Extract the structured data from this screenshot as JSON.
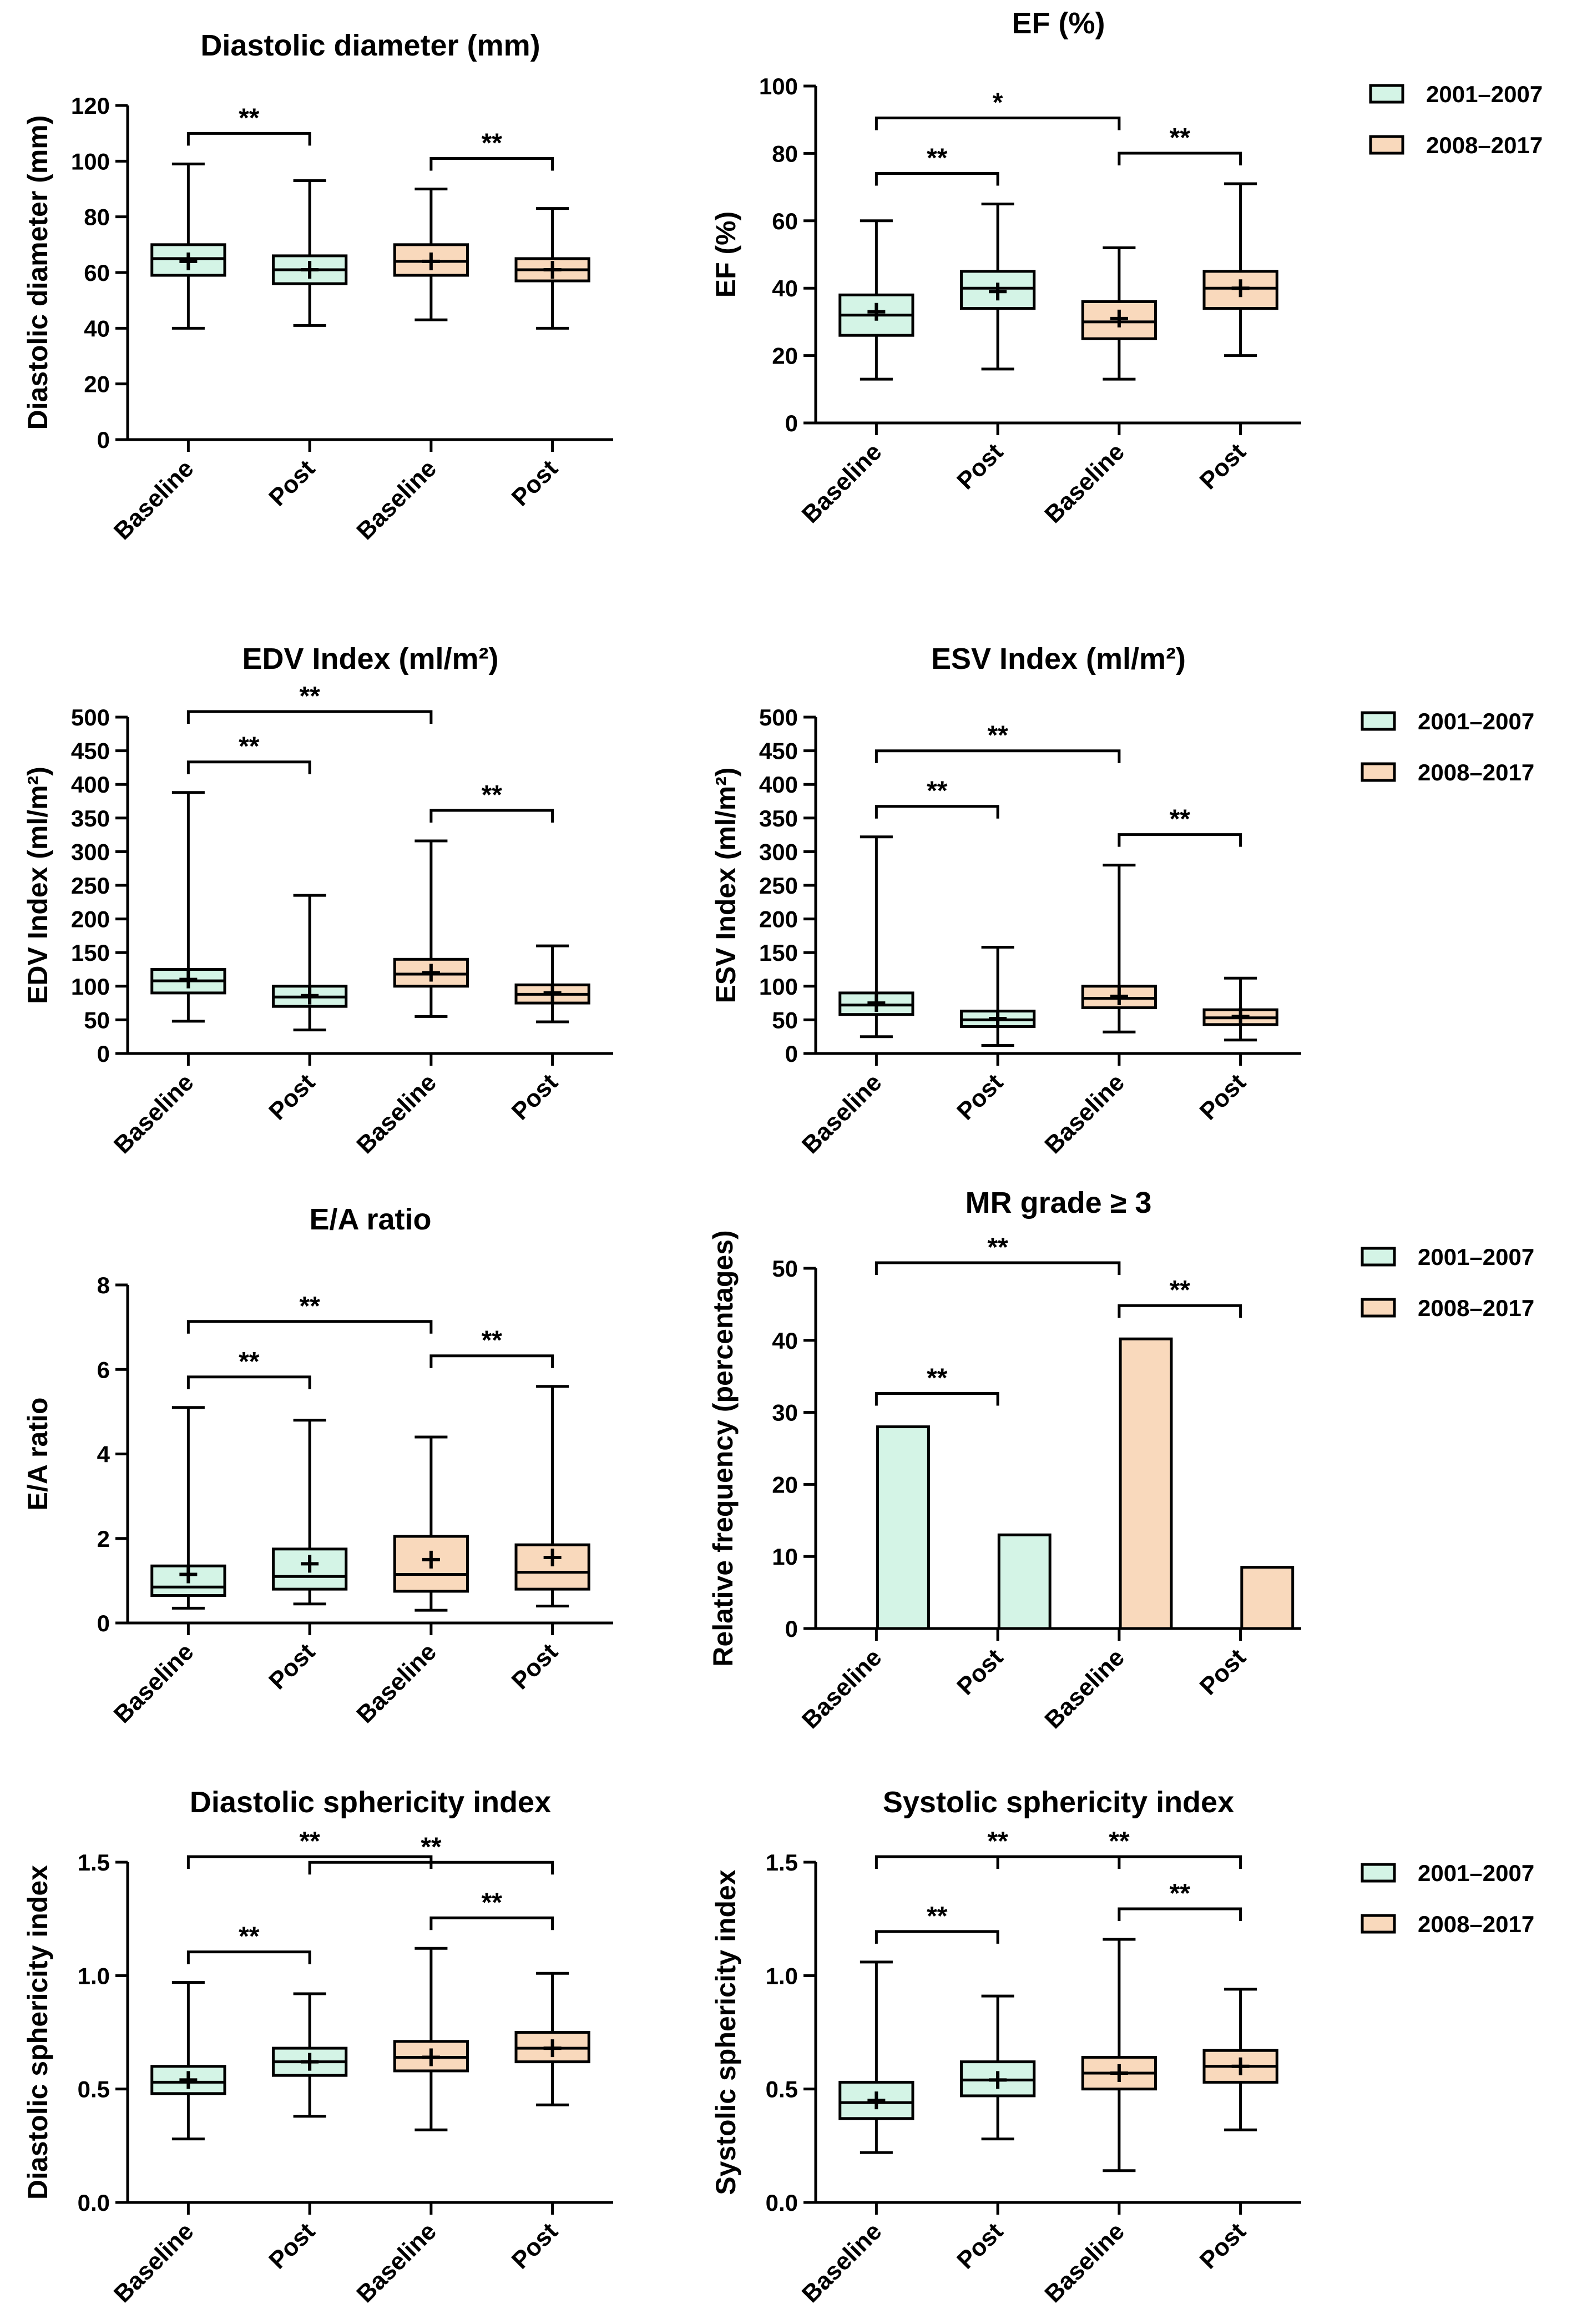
{
  "colors": {
    "group1": "#d4f4e6",
    "group2": "#f9d9bc",
    "stroke": "#000000"
  },
  "legend": {
    "group1": "2001–2007",
    "group2": "2008–2017"
  },
  "chart_data": [
    {
      "type": "box",
      "id": "diastolic-diameter",
      "title": "Diastolic diameter (mm)",
      "ylabel": "Diastolic diameter (mm)",
      "ylim": [
        0,
        120
      ],
      "yticks": [
        0,
        20,
        40,
        60,
        80,
        100,
        120
      ],
      "ytick_labels": [
        "0",
        "20",
        "40",
        "60",
        "80",
        "100",
        "120"
      ],
      "categories": [
        "Baseline",
        "Post",
        "Baseline",
        "Post"
      ],
      "groups": [
        "2001–2007",
        "2001–2007",
        "2008–2017",
        "2008–2017"
      ],
      "boxes": [
        {
          "min": 40,
          "q1": 59,
          "median": 65,
          "q3": 70,
          "max": 99,
          "mean": 64
        },
        {
          "min": 41,
          "q1": 56,
          "median": 61,
          "q3": 66,
          "max": 93,
          "mean": 61
        },
        {
          "min": 43,
          "q1": 59,
          "median": 64,
          "q3": 70,
          "max": 90,
          "mean": 64
        },
        {
          "min": 40,
          "q1": 57,
          "median": 61,
          "q3": 65,
          "max": 83,
          "mean": 61
        }
      ],
      "significance": [
        {
          "from": 0,
          "to": 1,
          "level": 0,
          "label": "**"
        },
        {
          "from": 2,
          "to": 3,
          "level": 0,
          "label": "**"
        }
      ]
    },
    {
      "type": "box",
      "id": "ef",
      "title": "EF (%)",
      "ylabel": "EF (%)",
      "ylim": [
        0,
        100
      ],
      "yticks": [
        0,
        20,
        40,
        60,
        80,
        100
      ],
      "ytick_labels": [
        "0",
        "20",
        "40",
        "60",
        "80",
        "100"
      ],
      "categories": [
        "Baseline",
        "Post",
        "Baseline",
        "Post"
      ],
      "groups": [
        "2001–2007",
        "2001–2007",
        "2008–2017",
        "2008–2017"
      ],
      "boxes": [
        {
          "min": 13,
          "q1": 26,
          "median": 32,
          "q3": 38,
          "max": 60,
          "mean": 33
        },
        {
          "min": 16,
          "q1": 34,
          "median": 40,
          "q3": 45,
          "max": 65,
          "mean": 39
        },
        {
          "min": 13,
          "q1": 25,
          "median": 30,
          "q3": 36,
          "max": 52,
          "mean": 31
        },
        {
          "min": 20,
          "q1": 34,
          "median": 40,
          "q3": 45,
          "max": 71,
          "mean": 40
        }
      ],
      "significance": [
        {
          "from": 0,
          "to": 1,
          "level": 0,
          "label": "**"
        },
        {
          "from": 2,
          "to": 3,
          "level": 0,
          "label": "**"
        },
        {
          "from": 0,
          "to": 2,
          "level": 1,
          "label": "*"
        }
      ]
    },
    {
      "type": "box",
      "id": "edv-index",
      "title": "EDV Index (ml/m²)",
      "ylabel": "EDV Index (ml/m²)",
      "ylim": [
        0,
        500
      ],
      "yticks": [
        0,
        50,
        100,
        150,
        200,
        250,
        300,
        350,
        400,
        450,
        500
      ],
      "ytick_labels": [
        "0",
        "50",
        "100",
        "150",
        "200",
        "250",
        "300",
        "350",
        "400",
        "450",
        "500"
      ],
      "categories": [
        "Baseline",
        "Post",
        "Baseline",
        "Post"
      ],
      "groups": [
        "2001–2007",
        "2001–2007",
        "2008–2017",
        "2008–2017"
      ],
      "boxes": [
        {
          "min": 48,
          "q1": 90,
          "median": 108,
          "q3": 125,
          "max": 388,
          "mean": 110
        },
        {
          "min": 35,
          "q1": 70,
          "median": 84,
          "q3": 100,
          "max": 235,
          "mean": 86
        },
        {
          "min": 55,
          "q1": 100,
          "median": 118,
          "q3": 140,
          "max": 316,
          "mean": 120
        },
        {
          "min": 47,
          "q1": 75,
          "median": 88,
          "q3": 102,
          "max": 160,
          "mean": 90
        }
      ],
      "significance": [
        {
          "from": 0,
          "to": 1,
          "level": 0,
          "label": "**"
        },
        {
          "from": 2,
          "to": 3,
          "level": 0,
          "label": "**"
        },
        {
          "from": 0,
          "to": 2,
          "level": 1,
          "label": "**"
        }
      ]
    },
    {
      "type": "box",
      "id": "esv-index",
      "title": "ESV Index (ml/m²)",
      "ylabel": "ESV Index (ml/m²)",
      "ylim": [
        0,
        500
      ],
      "yticks": [
        0,
        50,
        100,
        150,
        200,
        250,
        300,
        350,
        400,
        450,
        500
      ],
      "ytick_labels": [
        "0",
        "50",
        "100",
        "150",
        "200",
        "250",
        "300",
        "350",
        "400",
        "450",
        "500"
      ],
      "categories": [
        "Baseline",
        "Post",
        "Baseline",
        "Post"
      ],
      "groups": [
        "2001–2007",
        "2001–2007",
        "2008–2017",
        "2008–2017"
      ],
      "boxes": [
        {
          "min": 25,
          "q1": 58,
          "median": 72,
          "q3": 90,
          "max": 322,
          "mean": 75
        },
        {
          "min": 12,
          "q1": 40,
          "median": 50,
          "q3": 63,
          "max": 158,
          "mean": 52
        },
        {
          "min": 32,
          "q1": 68,
          "median": 82,
          "q3": 100,
          "max": 280,
          "mean": 85
        },
        {
          "min": 20,
          "q1": 43,
          "median": 53,
          "q3": 65,
          "max": 112,
          "mean": 55
        }
      ],
      "significance": [
        {
          "from": 0,
          "to": 1,
          "level": 0,
          "label": "**"
        },
        {
          "from": 2,
          "to": 3,
          "level": 0,
          "label": "**"
        },
        {
          "from": 0,
          "to": 2,
          "level": 1,
          "label": "**"
        }
      ]
    },
    {
      "type": "box",
      "id": "ea-ratio",
      "title": "E/A ratio",
      "ylabel": "E/A ratio",
      "ylim": [
        0,
        8
      ],
      "yticks": [
        0,
        2,
        4,
        6,
        8
      ],
      "ytick_labels": [
        "0",
        "2",
        "4",
        "6",
        "8"
      ],
      "categories": [
        "Baseline",
        "Post",
        "Baseline",
        "Post"
      ],
      "groups": [
        "2001–2007",
        "2001–2007",
        "2008–2017",
        "2008–2017"
      ],
      "boxes": [
        {
          "min": 0.35,
          "q1": 0.65,
          "median": 0.85,
          "q3": 1.35,
          "max": 5.1,
          "mean": 1.15
        },
        {
          "min": 0.45,
          "q1": 0.8,
          "median": 1.1,
          "q3": 1.75,
          "max": 4.8,
          "mean": 1.4
        },
        {
          "min": 0.3,
          "q1": 0.75,
          "median": 1.15,
          "q3": 2.05,
          "max": 4.4,
          "mean": 1.5
        },
        {
          "min": 0.4,
          "q1": 0.8,
          "median": 1.2,
          "q3": 1.85,
          "max": 5.6,
          "mean": 1.55
        }
      ],
      "significance": [
        {
          "from": 0,
          "to": 1,
          "level": 0,
          "label": "**"
        },
        {
          "from": 2,
          "to": 3,
          "level": 0,
          "label": "**"
        },
        {
          "from": 0,
          "to": 2,
          "level": 1,
          "label": "**"
        }
      ]
    },
    {
      "type": "bar",
      "id": "mr-grade",
      "title": "MR grade ≥ 3",
      "ylabel": "Relative frequency (percentages)",
      "ylim": [
        0,
        50
      ],
      "yticks": [
        0,
        10,
        20,
        30,
        40,
        50
      ],
      "ytick_labels": [
        "0",
        "10",
        "20",
        "30",
        "40",
        "50"
      ],
      "categories": [
        "Baseline",
        "Post",
        "Baseline",
        "Post"
      ],
      "groups": [
        "2001–2007",
        "2001–2007",
        "2008–2017",
        "2008–2017"
      ],
      "values": [
        28,
        13,
        40.2,
        8.5
      ],
      "significance": [
        {
          "from": 0,
          "to": 1,
          "level": 0,
          "label": "**"
        },
        {
          "from": 2,
          "to": 3,
          "level": 0,
          "label": "**"
        },
        {
          "from": 0,
          "to": 2,
          "level": 1,
          "label": "**"
        }
      ]
    },
    {
      "type": "box",
      "id": "diastolic-sphericity",
      "title": "Diastolic sphericity index",
      "ylabel": "Diastolic sphericity index",
      "ylim": [
        0,
        1.5
      ],
      "yticks": [
        0,
        0.5,
        1.0,
        1.5
      ],
      "ytick_labels": [
        "0.0",
        "0.5",
        "1.0",
        "1.5"
      ],
      "categories": [
        "Baseline",
        "Post",
        "Baseline",
        "Post"
      ],
      "groups": [
        "2001–2007",
        "2001–2007",
        "2008–2017",
        "2008–2017"
      ],
      "boxes": [
        {
          "min": 0.28,
          "q1": 0.48,
          "median": 0.53,
          "q3": 0.6,
          "max": 0.97,
          "mean": 0.54
        },
        {
          "min": 0.38,
          "q1": 0.56,
          "median": 0.62,
          "q3": 0.68,
          "max": 0.92,
          "mean": 0.62
        },
        {
          "min": 0.32,
          "q1": 0.58,
          "median": 0.64,
          "q3": 0.71,
          "max": 1.12,
          "mean": 0.64
        },
        {
          "min": 0.43,
          "q1": 0.62,
          "median": 0.68,
          "q3": 0.75,
          "max": 1.01,
          "mean": 0.68
        }
      ],
      "significance": [
        {
          "from": 0,
          "to": 1,
          "level": 0,
          "label": "**"
        },
        {
          "from": 2,
          "to": 3,
          "level": 0,
          "label": "**"
        },
        {
          "from": 1,
          "to": 3,
          "level": 1,
          "label": "**"
        },
        {
          "from": 0,
          "to": 2,
          "level": 2,
          "label": "**"
        }
      ]
    },
    {
      "type": "box",
      "id": "systolic-sphericity",
      "title": "Systolic sphericity index",
      "ylabel": "Systolic sphericity index",
      "ylim": [
        0,
        1.5
      ],
      "yticks": [
        0,
        0.5,
        1.0,
        1.5
      ],
      "ytick_labels": [
        "0.0",
        "0.5",
        "1.0",
        "1.5"
      ],
      "categories": [
        "Baseline",
        "Post",
        "Baseline",
        "Post"
      ],
      "groups": [
        "2001–2007",
        "2001–2007",
        "2008–2017",
        "2008–2017"
      ],
      "boxes": [
        {
          "min": 0.22,
          "q1": 0.37,
          "median": 0.44,
          "q3": 0.53,
          "max": 1.06,
          "mean": 0.45
        },
        {
          "min": 0.28,
          "q1": 0.47,
          "median": 0.54,
          "q3": 0.62,
          "max": 0.91,
          "mean": 0.54
        },
        {
          "min": 0.14,
          "q1": 0.5,
          "median": 0.57,
          "q3": 0.64,
          "max": 1.16,
          "mean": 0.57
        },
        {
          "min": 0.32,
          "q1": 0.53,
          "median": 0.6,
          "q3": 0.67,
          "max": 0.94,
          "mean": 0.6
        }
      ],
      "significance": [
        {
          "from": 0,
          "to": 1,
          "level": 0,
          "label": "**"
        },
        {
          "from": 2,
          "to": 3,
          "level": 0,
          "label": "**"
        },
        {
          "from": 1,
          "to": 3,
          "level": 1,
          "label": "**"
        },
        {
          "from": 0,
          "to": 2,
          "level": 2,
          "label": "**"
        }
      ]
    }
  ]
}
